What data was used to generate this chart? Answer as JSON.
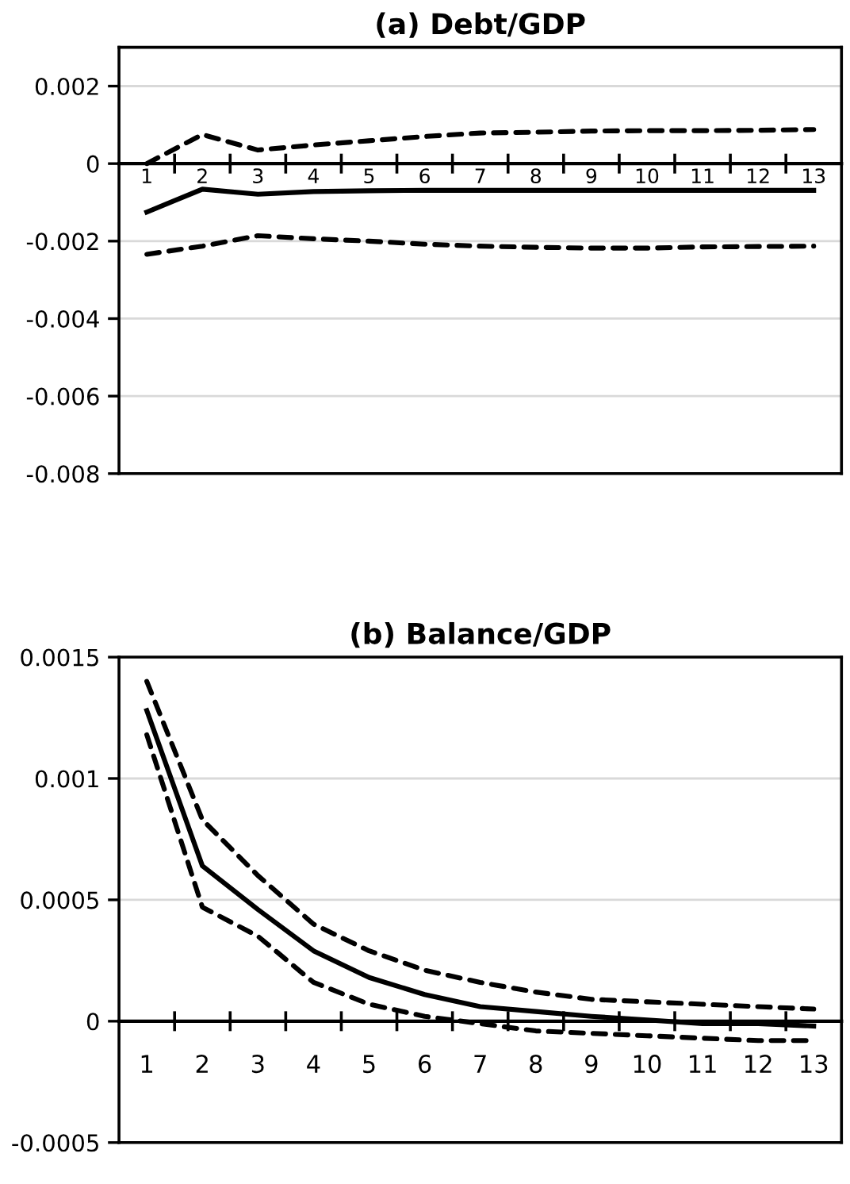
{
  "chart_data": [
    {
      "type": "line",
      "title": "(a) Debt/GDP",
      "categories": [
        "1",
        "2",
        "3",
        "4",
        "5",
        "6",
        "7",
        "8",
        "9",
        "10",
        "11",
        "12",
        "13"
      ],
      "series": [
        {
          "color": "#000000",
          "line_style": "dashed",
          "values": [
            0,
            0.00075,
            0.00035,
            0.00048,
            0.00059,
            0.0007,
            0.00079,
            0.00081,
            0.00084,
            0.00085,
            0.00085,
            0.00086,
            0.00088
          ]
        },
        {
          "color": "#000000",
          "line_style": "solid",
          "values": [
            -0.00125,
            -0.00066,
            -0.00079,
            -0.00072,
            -0.0007,
            -0.00069,
            -0.00069,
            -0.00069,
            -0.00069,
            -0.00069,
            -0.00069,
            -0.00069,
            -0.00069
          ]
        },
        {
          "color": "#000000",
          "line_style": "dashed",
          "values": [
            -0.00234,
            -0.00213,
            -0.00186,
            -0.00194,
            -0.002,
            -0.00208,
            -0.00213,
            -0.00216,
            -0.00218,
            -0.00218,
            -0.00215,
            -0.00214,
            -0.00213
          ]
        }
      ],
      "ylim": [
        -0.008,
        0.003
      ],
      "yticks": [
        -0.008,
        -0.006,
        -0.004,
        -0.002,
        0,
        0.002
      ],
      "grid": "y",
      "legend": false,
      "marker": "none"
    },
    {
      "type": "line",
      "title": "(b) Balance/GDP",
      "categories": [
        "1",
        "2",
        "3",
        "4",
        "5",
        "6",
        "7",
        "8",
        "9",
        "10",
        "11",
        "12",
        "13"
      ],
      "series": [
        {
          "color": "#000000",
          "line_style": "dashed",
          "values": [
            0.0014,
            0.00083,
            0.0006,
            0.0004,
            0.00029,
            0.00021,
            0.00016,
            0.00012,
            9e-05,
            8e-05,
            7e-05,
            6e-05,
            5e-05
          ]
        },
        {
          "color": "#000000",
          "line_style": "solid",
          "values": [
            0.00128,
            0.00064,
            0.00046,
            0.00029,
            0.00018,
            0.00011,
            6e-05,
            4e-05,
            2e-05,
            5e-06,
            -1e-05,
            -1e-05,
            -2e-05
          ]
        },
        {
          "color": "#000000",
          "line_style": "dashed",
          "values": [
            0.00118,
            0.00047,
            0.00035,
            0.00016,
            7e-05,
            2e-05,
            -1e-05,
            -4e-05,
            -5e-05,
            -6e-05,
            -7e-05,
            -8e-05,
            -8e-05
          ]
        }
      ],
      "ylim": [
        -0.0005,
        0.0015
      ],
      "yticks": [
        -0.0005,
        0,
        0.0005,
        0.001,
        0.0015
      ],
      "grid": "y",
      "legend": false,
      "marker": "none"
    }
  ]
}
